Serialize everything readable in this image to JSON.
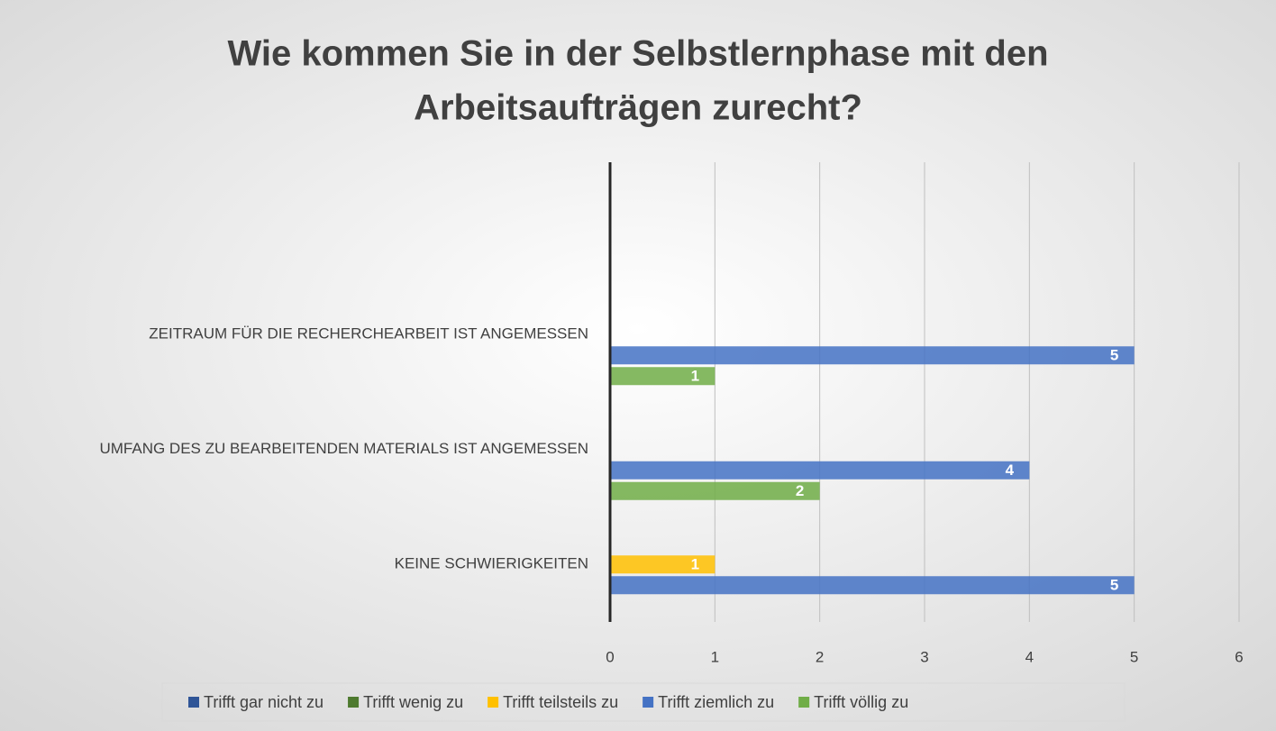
{
  "chart_data": {
    "type": "bar",
    "orientation": "horizontal",
    "title": [
      "Wie kommen Sie in der Selbstlernphase mit den",
      "Arbeitsaufträgen zurecht?"
    ],
    "categories": [
      "KEINE SCHWIERIGKEITEN",
      "UMFANG DES ZU BEARBEITENDEN MATERIALS IST ANGEMESSEN",
      "ZEITRAUM FÜR DIE RECHERCHEARBEIT IST ANGEMESSEN",
      null
    ],
    "series": [
      {
        "name": "Trifft gar nicht zu",
        "color": "#2f5597",
        "values": [
          null,
          null,
          null,
          null
        ]
      },
      {
        "name": "Trifft wenig zu",
        "color": "#4e7a2f",
        "values": [
          null,
          null,
          null,
          null
        ]
      },
      {
        "name": "Trifft teilsteils zu",
        "color": "#ffc000",
        "values": [
          1,
          null,
          null,
          null
        ]
      },
      {
        "name": "Trifft ziemlich zu",
        "color": "#4472c4",
        "values": [
          5,
          4,
          5,
          null
        ]
      },
      {
        "name": "Trifft völlig zu",
        "color": "#70ad47",
        "values": [
          null,
          2,
          1,
          null
        ]
      }
    ],
    "xlim": [
      0,
      6
    ],
    "xticks": [
      0,
      1,
      2,
      3,
      4,
      5,
      6
    ],
    "grid": true,
    "legend": "bottom"
  }
}
